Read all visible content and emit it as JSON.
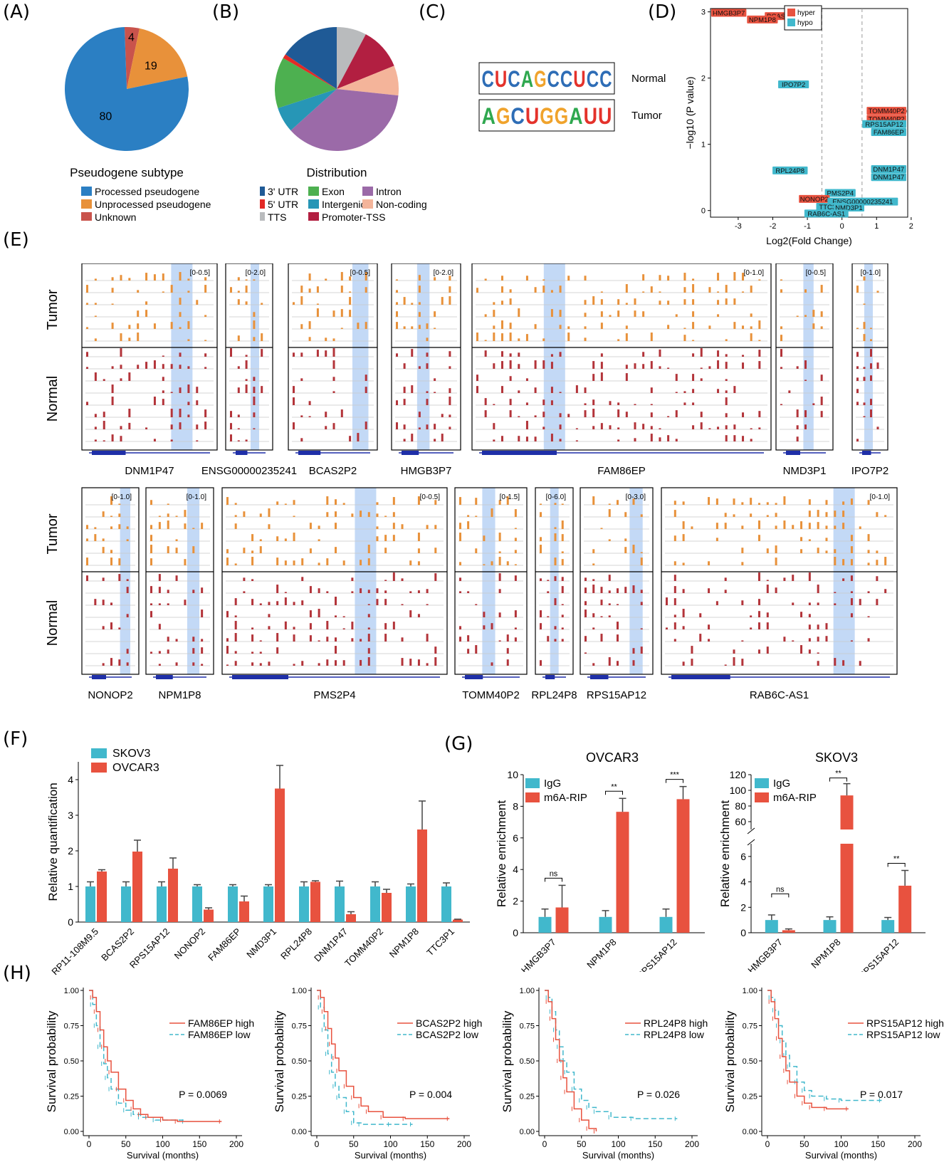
{
  "panel_labels": {
    "A": "(A)",
    "B": "(B)",
    "C": "(C)",
    "D": "(D)",
    "E": "(E)",
    "F": "(F)",
    "G": "(G)",
    "H": "(H)"
  },
  "chart_data": [
    {
      "id": "A",
      "type": "pie",
      "title": "Pseudogene subtype",
      "slices": [
        {
          "label": "Processed pseudogene",
          "value": 80,
          "color": "#2B7FC3"
        },
        {
          "label": "Unprocessed pseudogene",
          "value": 19,
          "color": "#E8913A"
        },
        {
          "label": "Unknown",
          "value": 4,
          "color": "#C9534C"
        }
      ]
    },
    {
      "id": "B",
      "type": "pie",
      "title": "Distribution",
      "slices": [
        {
          "label": "3' UTR",
          "value": 14,
          "color": "#1F5A96"
        },
        {
          "label": "5' UTR",
          "value": 1,
          "color": "#E32A26"
        },
        {
          "label": "TTS",
          "value": 7,
          "color": "#B9BBBD"
        },
        {
          "label": "Exon",
          "value": 12,
          "color": "#4DB050"
        },
        {
          "label": "Intergenic",
          "value": 6,
          "color": "#2796B6"
        },
        {
          "label": "Intron",
          "value": 33,
          "color": "#9B6AA8"
        },
        {
          "label": "Non-coding",
          "value": 7,
          "color": "#F4B49A"
        },
        {
          "label": "Promoter-TSS",
          "value": 10,
          "color": "#B21F41"
        }
      ],
      "order": [
        "TTS",
        "Promoter-TSS",
        "Non-coding",
        "Intron",
        "Intergenic",
        "Exon",
        "5' UTR",
        "3' UTR"
      ]
    },
    {
      "id": "C",
      "type": "table",
      "motifs": [
        {
          "label": "Normal",
          "sequence": "CUCAGCCUCC"
        },
        {
          "label": "Tumor",
          "sequence": "AGCUGGAUU"
        }
      ]
    },
    {
      "id": "D",
      "type": "scatter",
      "xlabel": "Log2(Fold Change)",
      "ylabel": "−log10 (P value)",
      "xlim": [
        -3.8,
        1.9
      ],
      "ylim": [
        -0.1,
        3.05
      ],
      "xticks": [
        -3,
        -2,
        -1,
        0,
        1,
        2
      ],
      "yticks": [
        0,
        1,
        2,
        3
      ],
      "vlines": [
        -0.58,
        0.58
      ],
      "legend": [
        {
          "label": "hyper",
          "color": "#E8523F"
        },
        {
          "label": "hypo",
          "color": "#41B8CC"
        }
      ],
      "points": [
        {
          "gene": "HMGB3P7",
          "x": -3.6,
          "y": 2.98,
          "group": "hyper"
        },
        {
          "gene": "BCAS2",
          "x": -1.85,
          "y": 2.93,
          "group": "hyper"
        },
        {
          "gene": "NPM1P8",
          "x": -2.3,
          "y": 2.88,
          "group": "hyper"
        },
        {
          "gene": "IPO7P2",
          "x": -1.4,
          "y": 1.9,
          "group": "hypo"
        },
        {
          "gene": "TOMM40P2",
          "x": 1.8,
          "y": 1.5,
          "group": "hyper"
        },
        {
          "gene": "TOMM40P2",
          "x": 1.78,
          "y": 1.38,
          "group": "hyper"
        },
        {
          "gene": "RPS15AP12",
          "x": 1.75,
          "y": 1.3,
          "group": "hypo"
        },
        {
          "gene": "FAM86EP",
          "x": 1.7,
          "y": 1.18,
          "group": "hypo"
        },
        {
          "gene": "RPL24P8",
          "x": -1.5,
          "y": 0.6,
          "group": "hypo"
        },
        {
          "gene": "DNM1P47",
          "x": 1.1,
          "y": 0.62,
          "group": "hypo"
        },
        {
          "gene": "DNM1P47",
          "x": 1.05,
          "y": 0.5,
          "group": "hypo"
        },
        {
          "gene": "PMS2P4",
          "x": -0.05,
          "y": 0.26,
          "group": "hypo"
        },
        {
          "gene": "NONOP2",
          "x": -0.8,
          "y": 0.17,
          "group": "hyper"
        },
        {
          "gene": "ENSG00000235241",
          "x": 0.6,
          "y": 0.13,
          "group": "hypo"
        },
        {
          "gene": "TTC3P1",
          "x": -0.3,
          "y": 0.05,
          "group": "hypo"
        },
        {
          "gene": "NMD3P1",
          "x": 0.2,
          "y": 0.04,
          "group": "hypo"
        },
        {
          "gene": "RAB6C-AS1",
          "x": -0.45,
          "y": -0.05,
          "group": "hypo"
        }
      ]
    },
    {
      "id": "E",
      "type": "area",
      "row_labels": {
        "tumor": "Tumor",
        "normal": "Normal"
      },
      "row1": [
        {
          "gene": "DNM1P47",
          "range": "[0-0.5]"
        },
        {
          "gene": "ENSG00000235241",
          "range": "[0-2.0]"
        },
        {
          "gene": "BCAS2P2",
          "range": "[0-0.5]"
        },
        {
          "gene": "HMGB3P7",
          "range": "[0-2.0]"
        },
        {
          "gene": "FAM86EP",
          "range": "[0-1.0]"
        },
        {
          "gene": "NMD3P1",
          "range": "[0-0.5]"
        },
        {
          "gene": "IPO7P2",
          "range": "[0-1.0]"
        }
      ],
      "row2": [
        {
          "gene": "NONOP2",
          "range": "[0-1.0]"
        },
        {
          "gene": "NPM1P8",
          "range": "[0-1.0]"
        },
        {
          "gene": "PMS2P4",
          "range": "[0-0.5]"
        },
        {
          "gene": "TOMM40P2",
          "range": "[0-1.5]"
        },
        {
          "gene": "RPL24P8",
          "range": "[0-6.0]"
        },
        {
          "gene": "RPS15AP12",
          "range": "[0-3.0]"
        },
        {
          "gene": "RAB6C-AS1",
          "range": "[0-1.0]"
        }
      ]
    },
    {
      "id": "F",
      "type": "bar",
      "ylabel": "Relative quantification",
      "ylim": [
        0,
        4.5
      ],
      "yticks": [
        0,
        1,
        2,
        3,
        4
      ],
      "categories": [
        "RP11-108M9.5",
        "BCAS2P2",
        "RPS15AP12",
        "NONOP2",
        "FAM86EP",
        "NMD3P1",
        "RPL24P8",
        "DNM1P47",
        "TOMM40P2",
        "NPM1P8",
        "TTC3P1"
      ],
      "series": [
        {
          "name": "SKOV3",
          "color": "#41B8CC",
          "values": [
            1.0,
            1.0,
            1.0,
            1.0,
            1.0,
            1.0,
            1.0,
            1.0,
            1.0,
            1.0,
            1.0
          ],
          "errors": [
            0.13,
            0.13,
            0.13,
            0.05,
            0.05,
            0.05,
            0.13,
            0.15,
            0.13,
            0.07,
            0.1
          ]
        },
        {
          "name": "OVCAR3",
          "color": "#E8523F",
          "values": [
            1.42,
            1.98,
            1.5,
            0.35,
            0.58,
            3.75,
            1.13,
            0.22,
            0.82,
            2.6,
            0.07
          ]
        }
      ],
      "errors2": [
        0.05,
        0.32,
        0.3,
        0.05,
        0.15,
        0.65,
        0.03,
        0.07,
        0.1,
        0.8,
        0.01
      ]
    },
    {
      "id": "G1",
      "type": "bar",
      "title": "OVCAR3",
      "ylabel": "Relative enrichment",
      "ylim": [
        0,
        10
      ],
      "yticks": [
        0,
        2,
        4,
        6,
        8,
        10
      ],
      "categories": [
        "HMGB3P7",
        "NPM1P8",
        "RPS15AP12"
      ],
      "series": [
        {
          "name": "IgG",
          "color": "#41B8CC",
          "values": [
            1.0,
            1.0,
            1.0
          ],
          "errors": [
            0.5,
            0.4,
            0.5
          ]
        },
        {
          "name": "m6A-RIP",
          "color": "#E8523F",
          "values": [
            1.6,
            7.65,
            8.45
          ],
          "errors": [
            1.4,
            0.85,
            0.8
          ]
        }
      ],
      "significance": [
        "ns",
        "**",
        "***"
      ]
    },
    {
      "id": "G2",
      "type": "bar",
      "title": "SKOV3",
      "ylabel": "Relative enrichment",
      "ylim_low": [
        0,
        7
      ],
      "ylim_high": [
        50,
        120
      ],
      "yticks_low": [
        0,
        2,
        4,
        6
      ],
      "yticks_high": [
        60,
        80,
        100,
        120
      ],
      "categories": [
        "HMGB3P7",
        "NPM1P8",
        "RPS15AP12"
      ],
      "series": [
        {
          "name": "IgG",
          "color": "#41B8CC",
          "values": [
            1.0,
            1.0,
            1.0
          ],
          "errors": [
            0.4,
            0.25,
            0.2
          ]
        },
        {
          "name": "m6A-RIP",
          "color": "#E8523F",
          "values": [
            0.2,
            93.5,
            3.7
          ],
          "errors": [
            0.1,
            15,
            1.2
          ]
        }
      ],
      "significance": [
        "ns",
        "**",
        "**"
      ]
    },
    {
      "id": "H",
      "type": "line",
      "xlabel": "Survival (months)",
      "ylabel": "Survival probability",
      "xticks": [
        0,
        50,
        100,
        150,
        200
      ],
      "yticks": [
        "0.00",
        "0.25",
        "0.50",
        "0.75",
        "1.00"
      ],
      "plots": [
        {
          "high_label": "FAM86EP high",
          "low_label": "FAM86EP low",
          "pvalue": "P = 0.0069",
          "high": [
            [
              0,
              1
            ],
            [
              5,
              0.95
            ],
            [
              10,
              0.85
            ],
            [
              15,
              0.72
            ],
            [
              20,
              0.6
            ],
            [
              25,
              0.5
            ],
            [
              30,
              0.42
            ],
            [
              40,
              0.3
            ],
            [
              50,
              0.22
            ],
            [
              60,
              0.16
            ],
            [
              70,
              0.12
            ],
            [
              80,
              0.1
            ],
            [
              100,
              0.08
            ],
            [
              120,
              0.07
            ],
            [
              180,
              0.07
            ]
          ],
          "low": [
            [
              0,
              1
            ],
            [
              5,
              0.9
            ],
            [
              10,
              0.75
            ],
            [
              15,
              0.6
            ],
            [
              20,
              0.48
            ],
            [
              25,
              0.38
            ],
            [
              30,
              0.3
            ],
            [
              40,
              0.2
            ],
            [
              50,
              0.15
            ],
            [
              60,
              0.12
            ],
            [
              70,
              0.1
            ],
            [
              90,
              0.08
            ],
            [
              130,
              0.07
            ]
          ]
        },
        {
          "high_label": "BCAS2P2 high",
          "low_label": "BCAS2P2 low",
          "pvalue": "P = 0.004",
          "high": [
            [
              0,
              1
            ],
            [
              5,
              0.95
            ],
            [
              10,
              0.85
            ],
            [
              15,
              0.73
            ],
            [
              20,
              0.62
            ],
            [
              25,
              0.52
            ],
            [
              30,
              0.43
            ],
            [
              40,
              0.32
            ],
            [
              50,
              0.24
            ],
            [
              60,
              0.18
            ],
            [
              70,
              0.14
            ],
            [
              90,
              0.1
            ],
            [
              120,
              0.09
            ],
            [
              180,
              0.09
            ]
          ],
          "low": [
            [
              0,
              1
            ],
            [
              5,
              0.88
            ],
            [
              10,
              0.72
            ],
            [
              15,
              0.55
            ],
            [
              20,
              0.42
            ],
            [
              25,
              0.32
            ],
            [
              30,
              0.24
            ],
            [
              40,
              0.14
            ],
            [
              50,
              0.06
            ],
            [
              60,
              0.05
            ],
            [
              100,
              0.05
            ],
            [
              130,
              0.05
            ]
          ]
        },
        {
          "high_label": "RPL24P8 high",
          "low_label": "RPL24P8 low",
          "pvalue": "P = 0.026",
          "high": [
            [
              0,
              1
            ],
            [
              5,
              0.92
            ],
            [
              10,
              0.8
            ],
            [
              15,
              0.65
            ],
            [
              20,
              0.5
            ],
            [
              25,
              0.38
            ],
            [
              30,
              0.28
            ],
            [
              40,
              0.16
            ],
            [
              50,
              0.08
            ],
            [
              60,
              0.02
            ],
            [
              70,
              0.0
            ]
          ],
          "low": [
            [
              0,
              1
            ],
            [
              5,
              0.95
            ],
            [
              10,
              0.85
            ],
            [
              15,
              0.72
            ],
            [
              20,
              0.6
            ],
            [
              25,
              0.5
            ],
            [
              30,
              0.42
            ],
            [
              40,
              0.3
            ],
            [
              50,
              0.22
            ],
            [
              60,
              0.17
            ],
            [
              70,
              0.14
            ],
            [
              90,
              0.1
            ],
            [
              120,
              0.09
            ],
            [
              180,
              0.09
            ]
          ]
        },
        {
          "high_label": "RPS15AP12 high",
          "low_label": "RPS15AP12 low",
          "pvalue": "P = 0.017",
          "high": [
            [
              0,
              1
            ],
            [
              5,
              0.92
            ],
            [
              10,
              0.8
            ],
            [
              15,
              0.66
            ],
            [
              20,
              0.53
            ],
            [
              25,
              0.43
            ],
            [
              30,
              0.35
            ],
            [
              40,
              0.25
            ],
            [
              50,
              0.2
            ],
            [
              60,
              0.17
            ],
            [
              80,
              0.16
            ],
            [
              110,
              0.16
            ]
          ],
          "low": [
            [
              0,
              1
            ],
            [
              5,
              0.95
            ],
            [
              10,
              0.86
            ],
            [
              15,
              0.75
            ],
            [
              20,
              0.64
            ],
            [
              25,
              0.54
            ],
            [
              30,
              0.46
            ],
            [
              40,
              0.35
            ],
            [
              50,
              0.29
            ],
            [
              60,
              0.25
            ],
            [
              80,
              0.23
            ],
            [
              100,
              0.22
            ],
            [
              155,
              0.22
            ]
          ]
        }
      ]
    }
  ]
}
